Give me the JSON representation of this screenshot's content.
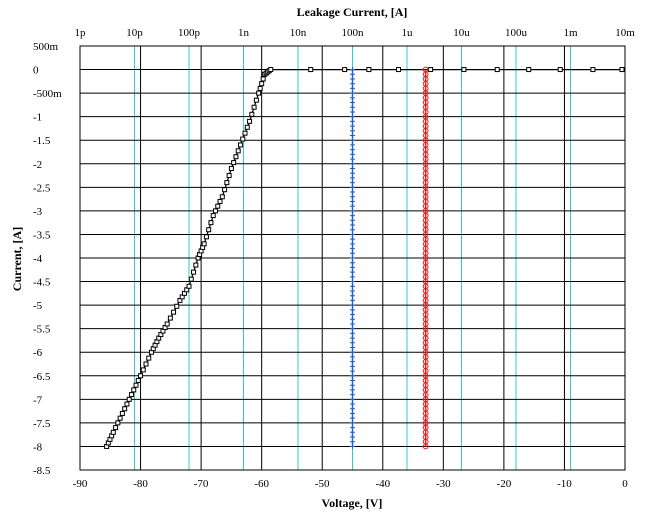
{
  "chart_data": {
    "type": "scatter",
    "title": "",
    "top_axis": {
      "label": "Leakage Current, [A]",
      "scale": "log",
      "range": [
        1e-12,
        0.01
      ],
      "tick_labels": [
        "1p",
        "10p",
        "100p",
        "1n",
        "10n",
        "100n",
        "1u",
        "10u",
        "100u",
        "1m",
        "10m"
      ]
    },
    "bottom_axis": {
      "label": "Voltage, [V]",
      "range": [
        -90,
        0
      ],
      "ticks": [
        -90,
        -80,
        -70,
        -60,
        -50,
        -40,
        -30,
        -20,
        -10,
        0
      ],
      "tick_labels": [
        "-90",
        "-80",
        "-70",
        "-60",
        "-50",
        "-40",
        "-30",
        "-20",
        "-10",
        "0"
      ]
    },
    "left_axis": {
      "label": "Current, [A]",
      "range": [
        -8.5,
        0.5
      ],
      "ticks": [
        0.5,
        0,
        -0.5,
        -1,
        -1.5,
        -2,
        -2.5,
        -3,
        -3.5,
        -4,
        -4.5,
        -5,
        -5.5,
        -6,
        -6.5,
        -7,
        -7.5,
        -8,
        -8.5
      ],
      "tick_labels": [
        "500m",
        "0",
        "-500m",
        "-1",
        "-1.5",
        "-2",
        "-2.5",
        "-3",
        "-3.5",
        "-4",
        "-4.5",
        "-5",
        "-5.5",
        "-6",
        "-6.5",
        "-7",
        "-7.5",
        "-8",
        "-8.5"
      ]
    },
    "grid": true,
    "grid_colors": {
      "primary": "#000000",
      "secondary": "#33cccc"
    },
    "series": [
      {
        "axes": "bottom-left",
        "color": "#000000",
        "marker": "square",
        "points": [
          [
            -85.6,
            -8.0
          ],
          [
            -84.5,
            -7.7
          ],
          [
            -83.0,
            -7.3
          ],
          [
            -81.5,
            -6.9
          ],
          [
            -80.0,
            -6.5
          ],
          [
            -78.2,
            -6.0
          ],
          [
            -77.0,
            -5.7
          ],
          [
            -75.6,
            -5.4
          ],
          [
            -73.5,
            -4.9
          ],
          [
            -72.0,
            -4.6
          ],
          [
            -70.5,
            -4.0
          ],
          [
            -69.5,
            -3.7
          ],
          [
            -68.0,
            -3.1
          ],
          [
            -66.5,
            -2.7
          ],
          [
            -65.0,
            -2.1
          ],
          [
            -63.5,
            -1.6
          ],
          [
            -62.0,
            -1.1
          ],
          [
            -60.5,
            -0.5
          ],
          [
            -59.5,
            -0.1
          ],
          [
            -58.5,
            0.0
          ],
          [
            -51.9,
            0.0
          ],
          [
            -46.3,
            0.0
          ],
          [
            -42.3,
            0.0
          ],
          [
            -37.4,
            0.0
          ],
          [
            -32.1,
            0.0
          ],
          [
            -26.6,
            0.0
          ],
          [
            -21.1,
            0.0
          ],
          [
            -15.9,
            0.0
          ],
          [
            -10.7,
            0.0
          ],
          [
            -5.3,
            0.0
          ],
          [
            -0.5,
            0.0
          ]
        ]
      },
      {
        "axes": "top-left",
        "color": "#1f5fd0",
        "marker": "plus",
        "x_value": 1e-07,
        "y_range": [
          -8,
          0
        ]
      },
      {
        "axes": "top-left",
        "color": "#e02020",
        "marker": "circle",
        "x_value": 2.2e-06,
        "y_range": [
          -8,
          0
        ]
      }
    ]
  }
}
